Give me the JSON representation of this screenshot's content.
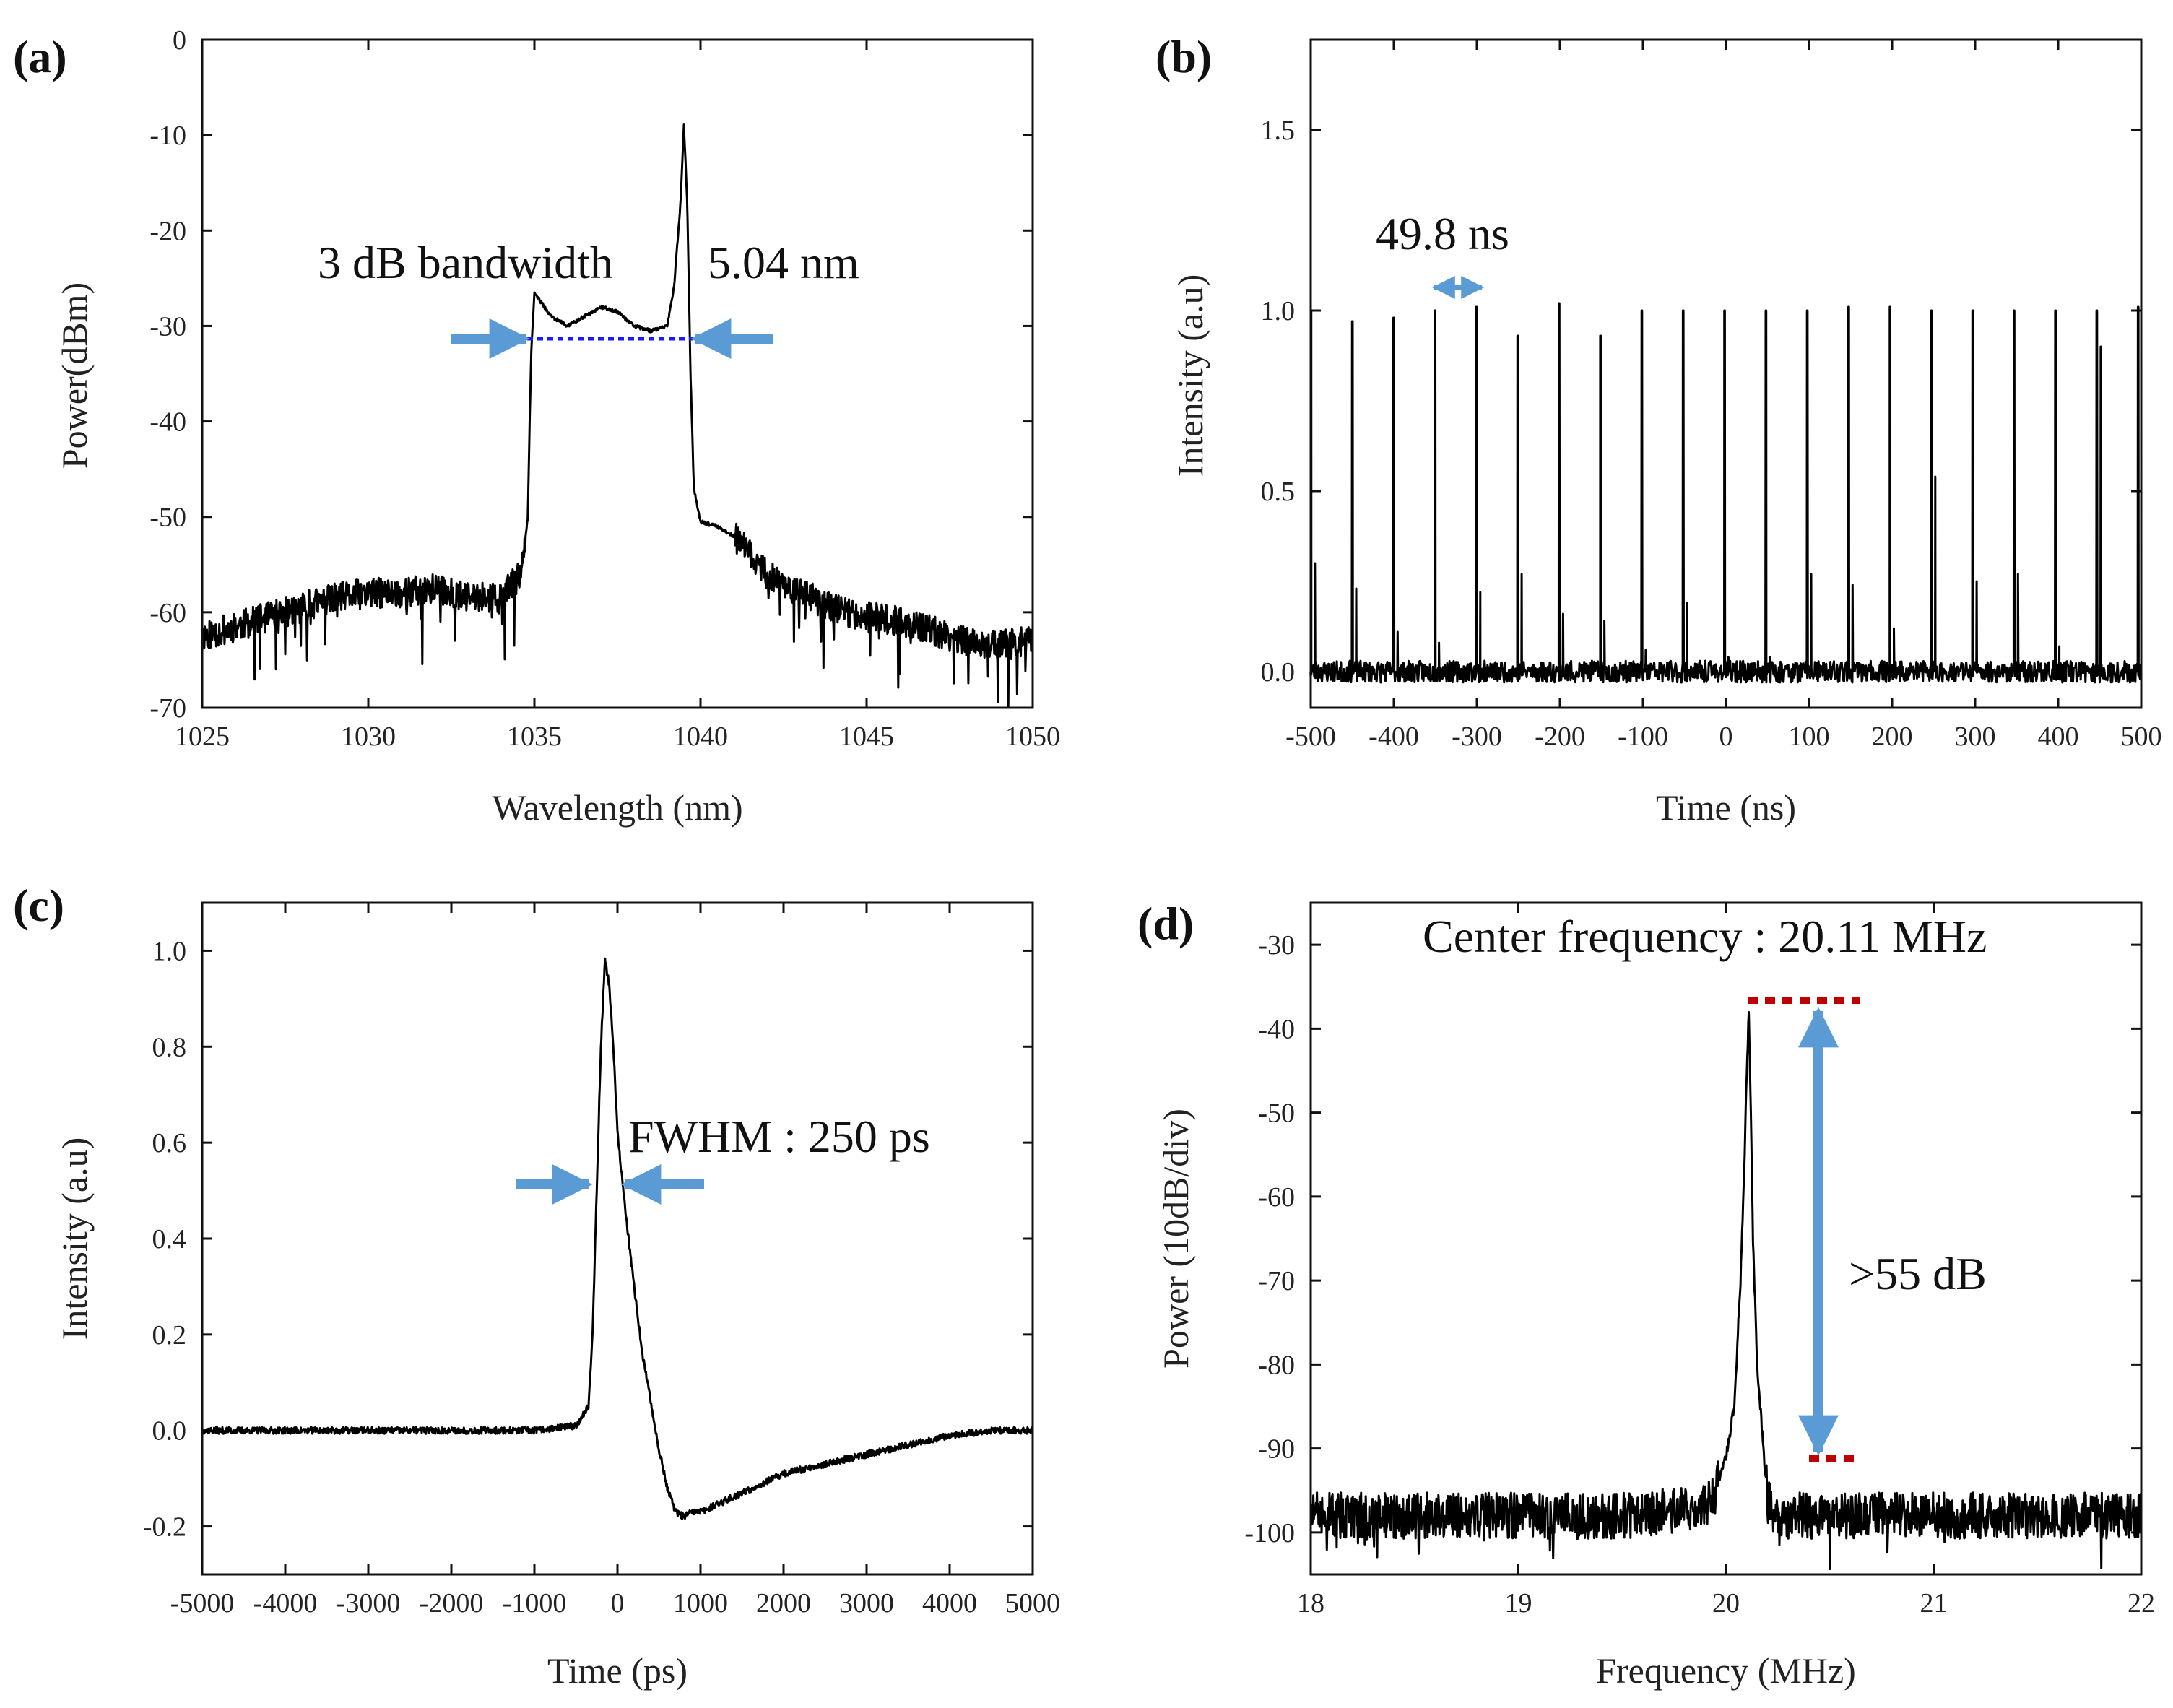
{
  "chart_data": [
    {
      "id": "a",
      "panel_label": "(a)",
      "type": "line",
      "xlabel": "Wavelength (nm)",
      "ylabel": "Power(dBm)",
      "xlim": [
        1025,
        1050
      ],
      "ylim": [
        -70,
        0
      ],
      "xticks": [
        1025,
        1030,
        1035,
        1040,
        1045,
        1050
      ],
      "yticks": [
        0,
        -10,
        -20,
        -30,
        -40,
        -50,
        -60,
        -70
      ],
      "annotations": [
        "3 dB bandwidth",
        "5.04 nm"
      ],
      "series": [
        {
          "x": [
            1025,
            1026,
            1027,
            1028,
            1029,
            1030,
            1031,
            1032,
            1033,
            1034,
            1034.6,
            1034.8,
            1034.9,
            1035,
            1035.5,
            1036,
            1036.5,
            1037,
            1037.5,
            1038,
            1038.5,
            1039,
            1039.2,
            1039.4,
            1039.5,
            1039.6,
            1039.7,
            1039.8,
            1040,
            1040.5,
            1041,
            1042,
            1043,
            1044,
            1045,
            1046,
            1047,
            1048,
            1049,
            1050
          ],
          "y": [
            -62.5,
            -61.5,
            -60.5,
            -59.5,
            -58.5,
            -58,
            -58,
            -57.5,
            -58.5,
            -58.5,
            -56,
            -50,
            -33,
            -26.5,
            -29,
            -30,
            -29,
            -28,
            -28.5,
            -30,
            -30.5,
            -30,
            -26,
            -17,
            -9,
            -17,
            -35,
            -47,
            -50.5,
            -51,
            -52,
            -56,
            -58,
            -59.5,
            -60.5,
            -61,
            -62,
            -63,
            -63.5,
            -63
          ]
        }
      ]
    },
    {
      "id": "b",
      "panel_label": "(b)",
      "type": "line",
      "xlabel": "Time (ns)",
      "ylabel": "Intensity (a.u)",
      "xlim": [
        -500,
        500
      ],
      "ylim": [
        -0.1,
        1.75
      ],
      "xticks": [
        -500,
        -400,
        -300,
        -200,
        -100,
        0,
        100,
        200,
        300,
        400,
        500
      ],
      "yticks": [
        0.0,
        0.5,
        1.0,
        1.5
      ],
      "annotations": [
        "49.8 ns"
      ],
      "series": [
        {
          "pulse_times": [
            -500,
            -450.2,
            -400.4,
            -350.6,
            -300.8,
            -251,
            -201.2,
            -151.4,
            -101.6,
            -51.8,
            -2,
            47.8,
            97.6,
            147.4,
            197.2,
            247,
            296.8,
            346.6,
            396.4,
            446.2,
            496
          ],
          "pulse_peaks": [
            1.0,
            0.97,
            0.98,
            1.0,
            1.01,
            0.93,
            1.02,
            0.93,
            1.0,
            1.0,
            1.0,
            1.0,
            1.0,
            1.01,
            1.01,
            1.0,
            1.0,
            1.0,
            1.0,
            1.0,
            1.01
          ],
          "secondary_peaks": [
            0.3,
            0.23,
            0.11,
            0.08,
            0.22,
            0.27,
            0.16,
            0.14,
            0.06,
            0.19,
            0.04,
            0.04,
            0.27,
            0.24,
            0.12,
            0.54,
            0.25,
            0.27,
            0.07,
            0.9,
            0.04
          ]
        }
      ]
    },
    {
      "id": "c",
      "panel_label": "(c)",
      "type": "line",
      "xlabel": "Time (ps)",
      "ylabel": "Intensity (a.u)",
      "xlim": [
        -5000,
        5000
      ],
      "ylim": [
        -0.3,
        1.1
      ],
      "xticks": [
        -5000,
        -4000,
        -3000,
        -2000,
        -1000,
        0,
        1000,
        2000,
        3000,
        4000,
        5000
      ],
      "yticks": [
        1.0,
        0.8,
        0.6,
        0.4,
        0.2,
        0.0,
        -0.2
      ],
      "annotations": [
        "FWHM : 250 ps"
      ],
      "series": [
        {
          "x": [
            -5000,
            -4000,
            -3000,
            -2000,
            -1000,
            -500,
            -350,
            -300,
            -250,
            -200,
            -150,
            -100,
            -50,
            0,
            100,
            200,
            300,
            400,
            500,
            600,
            700,
            800,
            900,
            1000,
            1500,
            2000,
            2500,
            3000,
            3500,
            4000,
            4500,
            5000
          ],
          "y": [
            0.0,
            0.0,
            0.0,
            0.0,
            0.0,
            0.01,
            0.05,
            0.2,
            0.5,
            0.8,
            0.98,
            0.93,
            0.8,
            0.62,
            0.45,
            0.3,
            0.16,
            0.06,
            -0.04,
            -0.12,
            -0.17,
            -0.18,
            -0.17,
            -0.17,
            -0.13,
            -0.09,
            -0.07,
            -0.05,
            -0.03,
            -0.01,
            0.0,
            0.0
          ]
        }
      ]
    },
    {
      "id": "d",
      "panel_label": "(d)",
      "type": "line",
      "xlabel": "Frequency (MHz)",
      "ylabel": "Power (10dB/div)",
      "xlim": [
        18,
        22
      ],
      "ylim": [
        -105,
        -25
      ],
      "xticks": [
        18,
        19,
        20,
        21,
        22
      ],
      "yticks": [
        -30,
        -40,
        -50,
        -60,
        -70,
        -80,
        -90,
        -100
      ],
      "annotations": [
        "Center frequency : 20.11 MHz",
        ">55 dB"
      ],
      "series": [
        {
          "x": [
            18,
            18.5,
            19,
            19.5,
            19.9,
            19.95,
            20.0,
            20.04,
            20.07,
            20.09,
            20.1,
            20.11,
            20.12,
            20.13,
            20.15,
            20.18,
            20.2,
            20.25,
            20.3,
            20.5,
            21,
            21.5,
            22
          ],
          "y": [
            -98,
            -98,
            -98,
            -98,
            -97,
            -95,
            -91,
            -85,
            -70,
            -55,
            -45,
            -38,
            -50,
            -65,
            -80,
            -90,
            -96,
            -99,
            -98,
            -98,
            -98,
            -98,
            -98
          ]
        }
      ]
    }
  ]
}
